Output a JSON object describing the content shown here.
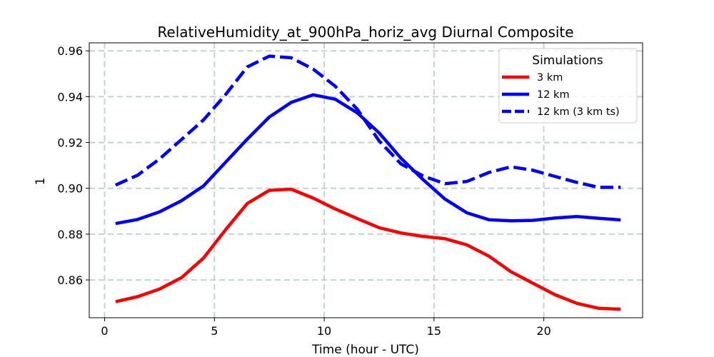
{
  "chart_data": {
    "type": "line",
    "title": "RelativeHumidity_at_900hPa_horiz_avg Diurnal Composite",
    "xlabel": "Time (hour - UTC)",
    "ylabel": "1",
    "xlim": [
      -0.7,
      24.5
    ],
    "ylim": [
      0.8435,
      0.9635
    ],
    "xticks": [
      0,
      5,
      10,
      15,
      20
    ],
    "yticks": [
      0.86,
      0.88,
      0.9,
      0.92,
      0.94,
      0.96
    ],
    "ytick_labels": [
      "0.86",
      "0.88",
      "0.90",
      "0.92",
      "0.94",
      "0.96"
    ],
    "grid": true,
    "legend": {
      "title": "Simulations",
      "position": "top-right"
    },
    "x": [
      0.5,
      1.5,
      2.5,
      3.5,
      4.5,
      5.5,
      6.5,
      7.5,
      8.5,
      9.5,
      10.5,
      11.5,
      12.5,
      13.5,
      14.5,
      15.5,
      16.5,
      17.5,
      18.5,
      19.5,
      20.5,
      21.5,
      22.5,
      23.5
    ],
    "series": [
      {
        "name": "3 km",
        "color": "#ff0000",
        "style": "solid",
        "values": [
          0.8505,
          0.8527,
          0.856,
          0.861,
          0.8695,
          0.8818,
          0.8934,
          0.8991,
          0.8996,
          0.8957,
          0.891,
          0.8868,
          0.8828,
          0.8805,
          0.879,
          0.878,
          0.8753,
          0.8704,
          0.8636,
          0.8586,
          0.8536,
          0.8498,
          0.8476,
          0.8472
        ]
      },
      {
        "name": "12 km",
        "color": "#0000ff",
        "style": "solid",
        "values": [
          0.8846,
          0.8864,
          0.8897,
          0.8946,
          0.901,
          0.9113,
          0.9215,
          0.9311,
          0.9375,
          0.9408,
          0.9389,
          0.933,
          0.9242,
          0.9131,
          0.9038,
          0.8953,
          0.8893,
          0.8863,
          0.8858,
          0.886,
          0.887,
          0.8877,
          0.8869,
          0.8862
        ]
      },
      {
        "name": "12 km (3 km ts)",
        "color": "#0000ff",
        "style": "dashed",
        "values": [
          0.9014,
          0.9057,
          0.9128,
          0.9213,
          0.9298,
          0.9408,
          0.953,
          0.9577,
          0.957,
          0.952,
          0.9446,
          0.9346,
          0.9207,
          0.9106,
          0.9054,
          0.902,
          0.903,
          0.9069,
          0.9094,
          0.9079,
          0.9052,
          0.9026,
          0.9004,
          0.9004
        ]
      }
    ]
  }
}
